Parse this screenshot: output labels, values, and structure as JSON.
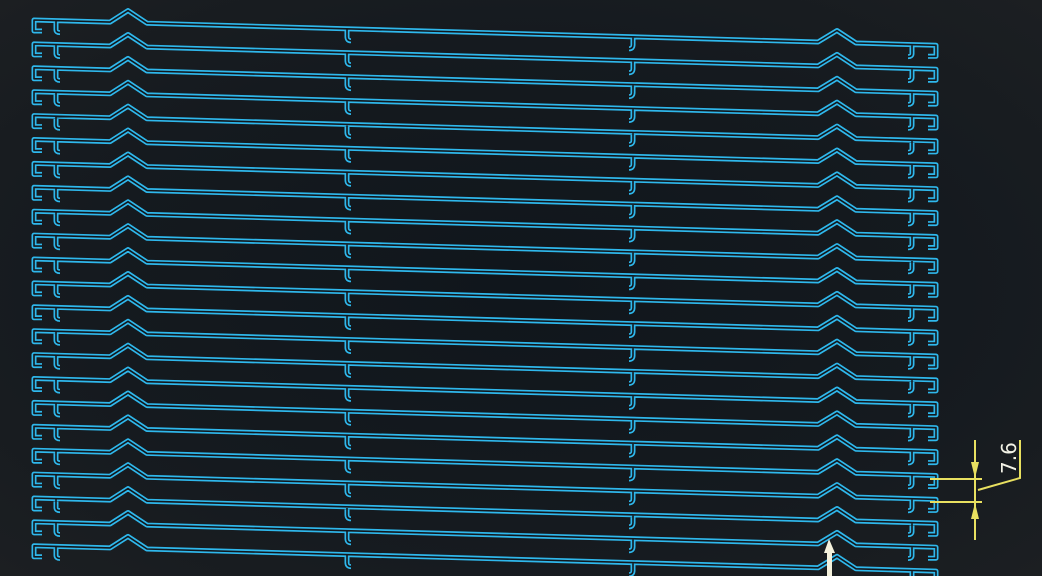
{
  "drawing": {
    "part_count": 23,
    "part_color": "#2fb8ec",
    "background_color": "#12171c",
    "dimension_color": "#e8e060",
    "dimension": {
      "value": "7.6"
    },
    "cursor_color": "#f4f1dc"
  }
}
